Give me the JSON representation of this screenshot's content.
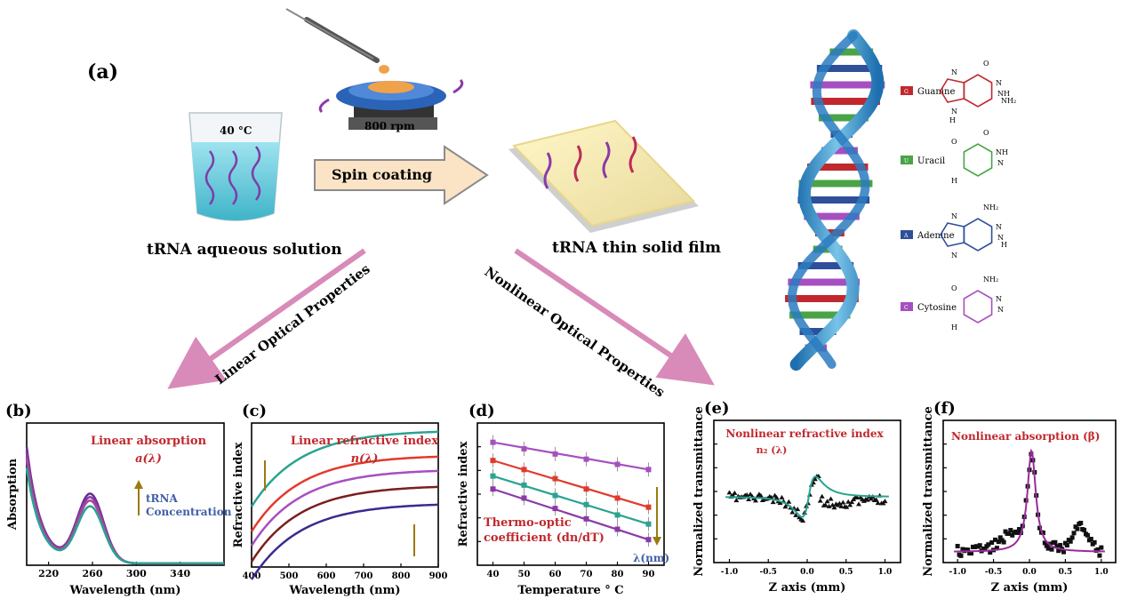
{
  "panel_a": {
    "label": "(a)",
    "beaker_temp": "40 °C",
    "spin_speed": "800 rpm",
    "arrow_label": "Spin coating",
    "solution_label": "tRNA aqueous solution",
    "film_label": "tRNA thin solid film",
    "linear_branch": "Linear Optical Properties",
    "nonlinear_branch": "Nonlinear Optical Properties",
    "legend": [
      {
        "key": "G",
        "name": "Guanine",
        "color": "#c0282d"
      },
      {
        "key": "U",
        "name": "Uracil",
        "color": "#4aa347"
      },
      {
        "key": "A",
        "name": "Adenine",
        "color": "#2f4f9a"
      },
      {
        "key": "C",
        "name": "Cytosine",
        "color": "#a64fc0"
      }
    ],
    "molecule_text": {
      "guanine": [
        "O",
        "N",
        "NH",
        "N",
        "N",
        "NH₂",
        "H"
      ],
      "uracil": [
        "O",
        "NH",
        "N",
        "O",
        "H"
      ],
      "adenine": [
        "NH₂",
        "N",
        "N",
        "N",
        "N",
        "H"
      ],
      "cytosine": [
        "NH₂",
        "N",
        "N",
        "O",
        "H"
      ]
    }
  },
  "chart_data": [
    {
      "type": "line",
      "label": "(b)",
      "title": "Linear absorption",
      "subtitle": "a(λ)",
      "annotation": [
        "tRNA",
        "Concentration"
      ],
      "xlabel": "Wavelength (nm)",
      "ylabel": "Absorption",
      "xlim": [
        200,
        380
      ],
      "xticks": [
        220,
        260,
        300,
        340
      ],
      "colors": [
        "#6a2c8f",
        "#8a3aa8",
        "#a8489a",
        "#2aa391"
      ]
    },
    {
      "type": "line",
      "label": "(c)",
      "title": "Linear refractive index",
      "subtitle": "n(λ)",
      "xlabel": "Wavelength (nm)",
      "ylabel": "Refractive index",
      "xlim": [
        400,
        900
      ],
      "xticks": [
        400,
        500,
        600,
        700,
        800,
        900
      ],
      "colors": [
        "#2aa391",
        "#e23a2c",
        "#a64fc0",
        "#7a1e1e",
        "#3a2a8f"
      ]
    },
    {
      "type": "scatter",
      "label": "(d)",
      "annotation": [
        "Thermo-optic",
        "coefficient (dn/dT)"
      ],
      "arrow_label": "λ(nm)",
      "xlabel": "Temperature ° C",
      "ylabel": "Refractive index",
      "xlim": [
        35,
        95
      ],
      "xticks": [
        40,
        50,
        60,
        70,
        80,
        90
      ],
      "x": [
        40,
        50,
        60,
        70,
        80,
        90
      ],
      "series": [
        {
          "color": "#a64fc0",
          "values": [
            0.92,
            0.87,
            0.83,
            0.79,
            0.75,
            0.71
          ]
        },
        {
          "color": "#e23a2c",
          "values": [
            0.78,
            0.71,
            0.64,
            0.56,
            0.49,
            0.42
          ]
        },
        {
          "color": "#2aa391",
          "values": [
            0.66,
            0.59,
            0.51,
            0.44,
            0.36,
            0.29
          ]
        },
        {
          "color": "#8a3aa8",
          "values": [
            0.56,
            0.49,
            0.41,
            0.33,
            0.25,
            0.17
          ]
        }
      ]
    },
    {
      "type": "scatter",
      "label": "(e)",
      "title": "Nonlinear refractive index",
      "subtitle": "n₂ (λ)",
      "xlabel": "Z axis (mm)",
      "ylabel": "Normalized transmittance",
      "xlim": [
        -1.2,
        1.2
      ],
      "xticks": [
        -1.0,
        -0.5,
        0.0,
        0.5,
        1.0
      ],
      "fit_color": "#2aa391"
    },
    {
      "type": "scatter",
      "label": "(f)",
      "title": "Nonlinear absorption    (β)",
      "xlabel": "Z axis (mm)",
      "ylabel": "Normalized transmittance",
      "xlim": [
        -1.2,
        1.2
      ],
      "xticks": [
        -1.0,
        -0.5,
        0.0,
        0.5,
        1.0
      ],
      "fit_color": "#9a2c9a"
    }
  ]
}
